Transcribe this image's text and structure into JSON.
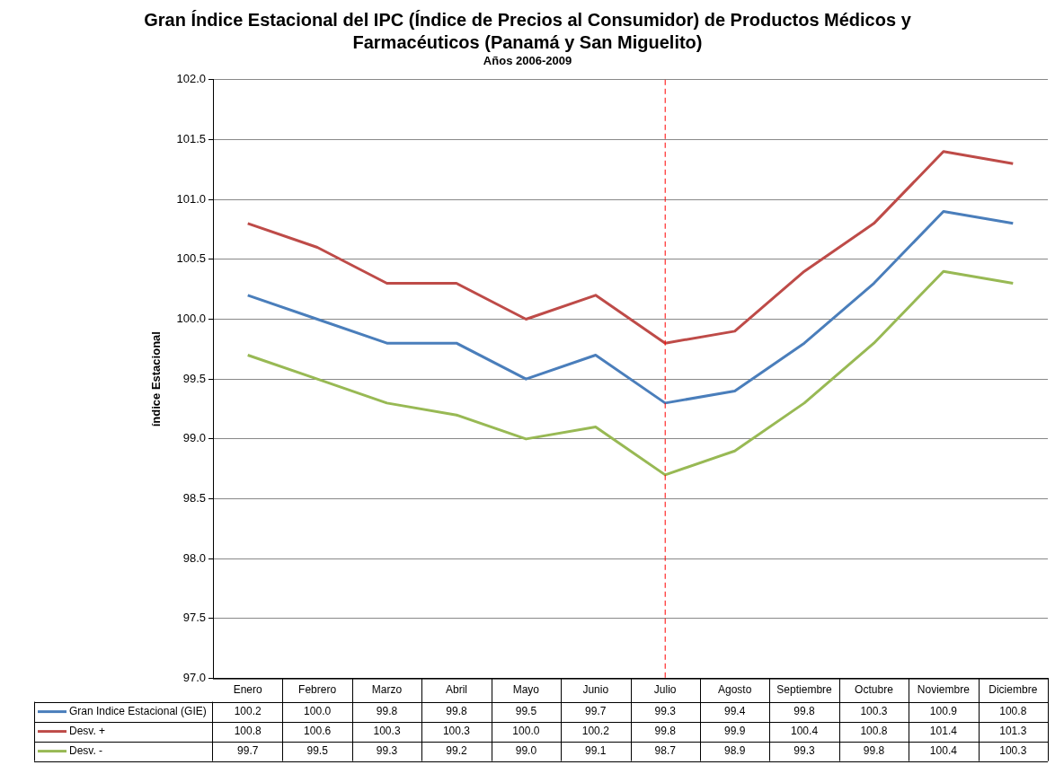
{
  "chart_data": {
    "type": "line",
    "title": "Gran Índice Estacional del IPC (Índice de Precios al Consumidor) de Productos Médicos y Farmacéuticos (Panamá y San Miguelito)",
    "subtitle": "Años 2006-2009",
    "ylabel": "índice Estacional",
    "categories": [
      "Enero",
      "Febrero",
      "Marzo",
      "Abril",
      "Mayo",
      "Junio",
      "Julio",
      "Agosto",
      "Septiembre",
      "Octubre",
      "Noviembre",
      "Diciembre"
    ],
    "series": [
      {
        "name": "Gran Indice Estacional (GIE)",
        "color": "#4a7ebb",
        "values": [
          100.2,
          100.0,
          99.8,
          99.8,
          99.5,
          99.7,
          99.3,
          99.4,
          99.8,
          100.3,
          100.9,
          100.8
        ],
        "value_labels": [
          "100.2",
          "100.0",
          "99.8",
          "99.8",
          "99.5",
          "99.7",
          "99.3",
          "99.4",
          "99.8",
          "100.3",
          "100.9",
          "100.8"
        ]
      },
      {
        "name": "Desv. +",
        "color": "#be4b48",
        "values": [
          100.8,
          100.6,
          100.3,
          100.3,
          100.0,
          100.2,
          99.8,
          99.9,
          100.4,
          100.8,
          101.4,
          101.3
        ],
        "value_labels": [
          "100.8",
          "100.6",
          "100.3",
          "100.3",
          "100.0",
          "100.2",
          "99.8",
          "99.9",
          "100.4",
          "100.8",
          "101.4",
          "101.3"
        ]
      },
      {
        "name": "Desv. -",
        "color": "#98b954",
        "values": [
          99.7,
          99.5,
          99.3,
          99.2,
          99.0,
          99.1,
          98.7,
          98.9,
          99.3,
          99.8,
          100.4,
          100.3
        ],
        "value_labels": [
          "99.7",
          "99.5",
          "99.3",
          "99.2",
          "99.0",
          "99.1",
          "98.7",
          "98.9",
          "99.3",
          "99.8",
          "100.4",
          "100.3"
        ]
      }
    ],
    "ylim": [
      97,
      102
    ],
    "yticks": [
      {
        "value": 97,
        "label": "97.0"
      },
      {
        "value": 97.5,
        "label": "97.5"
      },
      {
        "value": 98,
        "label": "98.0"
      },
      {
        "value": 98.5,
        "label": "98.5"
      },
      {
        "value": 99,
        "label": "99.0"
      },
      {
        "value": 99.5,
        "label": "99.5"
      },
      {
        "value": 100,
        "label": "100.0"
      },
      {
        "value": 100.5,
        "label": "100.5"
      },
      {
        "value": 101,
        "label": "101.0"
      },
      {
        "value": 101.5,
        "label": "101.5"
      },
      {
        "value": 102,
        "label": "102.0"
      }
    ],
    "grid": "y",
    "legend": "bottom",
    "marker": "none",
    "line_style": "solid",
    "ref_lines": [
      {
        "axis": "x",
        "value": "Julio",
        "color": "#ff0000",
        "line_style": "dashed"
      }
    ]
  }
}
